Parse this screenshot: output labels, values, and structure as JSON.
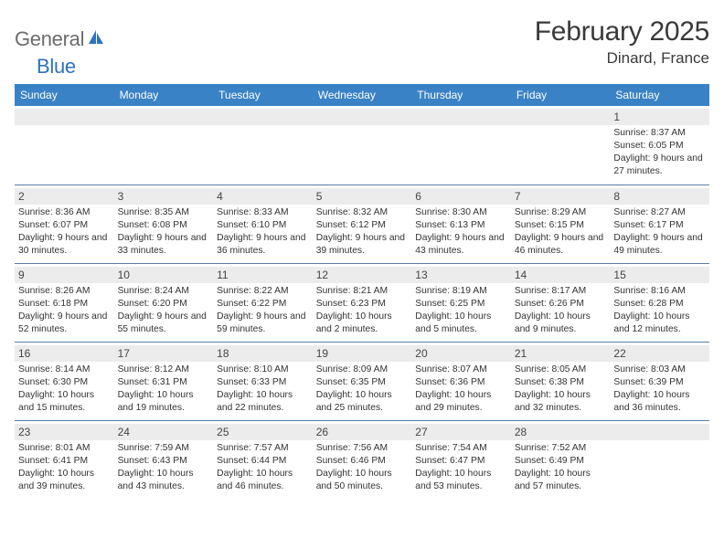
{
  "logo": {
    "general": "General",
    "blue": "Blue"
  },
  "title": "February 2025",
  "location": "Dinard, France",
  "weekdays": [
    "Sunday",
    "Monday",
    "Tuesday",
    "Wednesday",
    "Thursday",
    "Friday",
    "Saturday"
  ],
  "colors": {
    "header_bg": "#3982c6",
    "header_text": "#ffffff",
    "daynum_bg": "#ececec",
    "border": "#5a7da5",
    "logo_gray": "#6b6b6b",
    "logo_blue": "#2f72bd"
  },
  "weeks": [
    [
      {
        "n": "",
        "lines": []
      },
      {
        "n": "",
        "lines": []
      },
      {
        "n": "",
        "lines": []
      },
      {
        "n": "",
        "lines": []
      },
      {
        "n": "",
        "lines": []
      },
      {
        "n": "",
        "lines": []
      },
      {
        "n": "1",
        "lines": [
          "Sunrise: 8:37 AM",
          "Sunset: 6:05 PM",
          "Daylight: 9 hours and 27 minutes."
        ]
      }
    ],
    [
      {
        "n": "2",
        "lines": [
          "Sunrise: 8:36 AM",
          "Sunset: 6:07 PM",
          "Daylight: 9 hours and 30 minutes."
        ]
      },
      {
        "n": "3",
        "lines": [
          "Sunrise: 8:35 AM",
          "Sunset: 6:08 PM",
          "Daylight: 9 hours and 33 minutes."
        ]
      },
      {
        "n": "4",
        "lines": [
          "Sunrise: 8:33 AM",
          "Sunset: 6:10 PM",
          "Daylight: 9 hours and 36 minutes."
        ]
      },
      {
        "n": "5",
        "lines": [
          "Sunrise: 8:32 AM",
          "Sunset: 6:12 PM",
          "Daylight: 9 hours and 39 minutes."
        ]
      },
      {
        "n": "6",
        "lines": [
          "Sunrise: 8:30 AM",
          "Sunset: 6:13 PM",
          "Daylight: 9 hours and 43 minutes."
        ]
      },
      {
        "n": "7",
        "lines": [
          "Sunrise: 8:29 AM",
          "Sunset: 6:15 PM",
          "Daylight: 9 hours and 46 minutes."
        ]
      },
      {
        "n": "8",
        "lines": [
          "Sunrise: 8:27 AM",
          "Sunset: 6:17 PM",
          "Daylight: 9 hours and 49 minutes."
        ]
      }
    ],
    [
      {
        "n": "9",
        "lines": [
          "Sunrise: 8:26 AM",
          "Sunset: 6:18 PM",
          "Daylight: 9 hours and 52 minutes."
        ]
      },
      {
        "n": "10",
        "lines": [
          "Sunrise: 8:24 AM",
          "Sunset: 6:20 PM",
          "Daylight: 9 hours and 55 minutes."
        ]
      },
      {
        "n": "11",
        "lines": [
          "Sunrise: 8:22 AM",
          "Sunset: 6:22 PM",
          "Daylight: 9 hours and 59 minutes."
        ]
      },
      {
        "n": "12",
        "lines": [
          "Sunrise: 8:21 AM",
          "Sunset: 6:23 PM",
          "Daylight: 10 hours and 2 minutes."
        ]
      },
      {
        "n": "13",
        "lines": [
          "Sunrise: 8:19 AM",
          "Sunset: 6:25 PM",
          "Daylight: 10 hours and 5 minutes."
        ]
      },
      {
        "n": "14",
        "lines": [
          "Sunrise: 8:17 AM",
          "Sunset: 6:26 PM",
          "Daylight: 10 hours and 9 minutes."
        ]
      },
      {
        "n": "15",
        "lines": [
          "Sunrise: 8:16 AM",
          "Sunset: 6:28 PM",
          "Daylight: 10 hours and 12 minutes."
        ]
      }
    ],
    [
      {
        "n": "16",
        "lines": [
          "Sunrise: 8:14 AM",
          "Sunset: 6:30 PM",
          "Daylight: 10 hours and 15 minutes."
        ]
      },
      {
        "n": "17",
        "lines": [
          "Sunrise: 8:12 AM",
          "Sunset: 6:31 PM",
          "Daylight: 10 hours and 19 minutes."
        ]
      },
      {
        "n": "18",
        "lines": [
          "Sunrise: 8:10 AM",
          "Sunset: 6:33 PM",
          "Daylight: 10 hours and 22 minutes."
        ]
      },
      {
        "n": "19",
        "lines": [
          "Sunrise: 8:09 AM",
          "Sunset: 6:35 PM",
          "Daylight: 10 hours and 25 minutes."
        ]
      },
      {
        "n": "20",
        "lines": [
          "Sunrise: 8:07 AM",
          "Sunset: 6:36 PM",
          "Daylight: 10 hours and 29 minutes."
        ]
      },
      {
        "n": "21",
        "lines": [
          "Sunrise: 8:05 AM",
          "Sunset: 6:38 PM",
          "Daylight: 10 hours and 32 minutes."
        ]
      },
      {
        "n": "22",
        "lines": [
          "Sunrise: 8:03 AM",
          "Sunset: 6:39 PM",
          "Daylight: 10 hours and 36 minutes."
        ]
      }
    ],
    [
      {
        "n": "23",
        "lines": [
          "Sunrise: 8:01 AM",
          "Sunset: 6:41 PM",
          "Daylight: 10 hours and 39 minutes."
        ]
      },
      {
        "n": "24",
        "lines": [
          "Sunrise: 7:59 AM",
          "Sunset: 6:43 PM",
          "Daylight: 10 hours and 43 minutes."
        ]
      },
      {
        "n": "25",
        "lines": [
          "Sunrise: 7:57 AM",
          "Sunset: 6:44 PM",
          "Daylight: 10 hours and 46 minutes."
        ]
      },
      {
        "n": "26",
        "lines": [
          "Sunrise: 7:56 AM",
          "Sunset: 6:46 PM",
          "Daylight: 10 hours and 50 minutes."
        ]
      },
      {
        "n": "27",
        "lines": [
          "Sunrise: 7:54 AM",
          "Sunset: 6:47 PM",
          "Daylight: 10 hours and 53 minutes."
        ]
      },
      {
        "n": "28",
        "lines": [
          "Sunrise: 7:52 AM",
          "Sunset: 6:49 PM",
          "Daylight: 10 hours and 57 minutes."
        ]
      },
      {
        "n": "",
        "lines": []
      }
    ]
  ]
}
